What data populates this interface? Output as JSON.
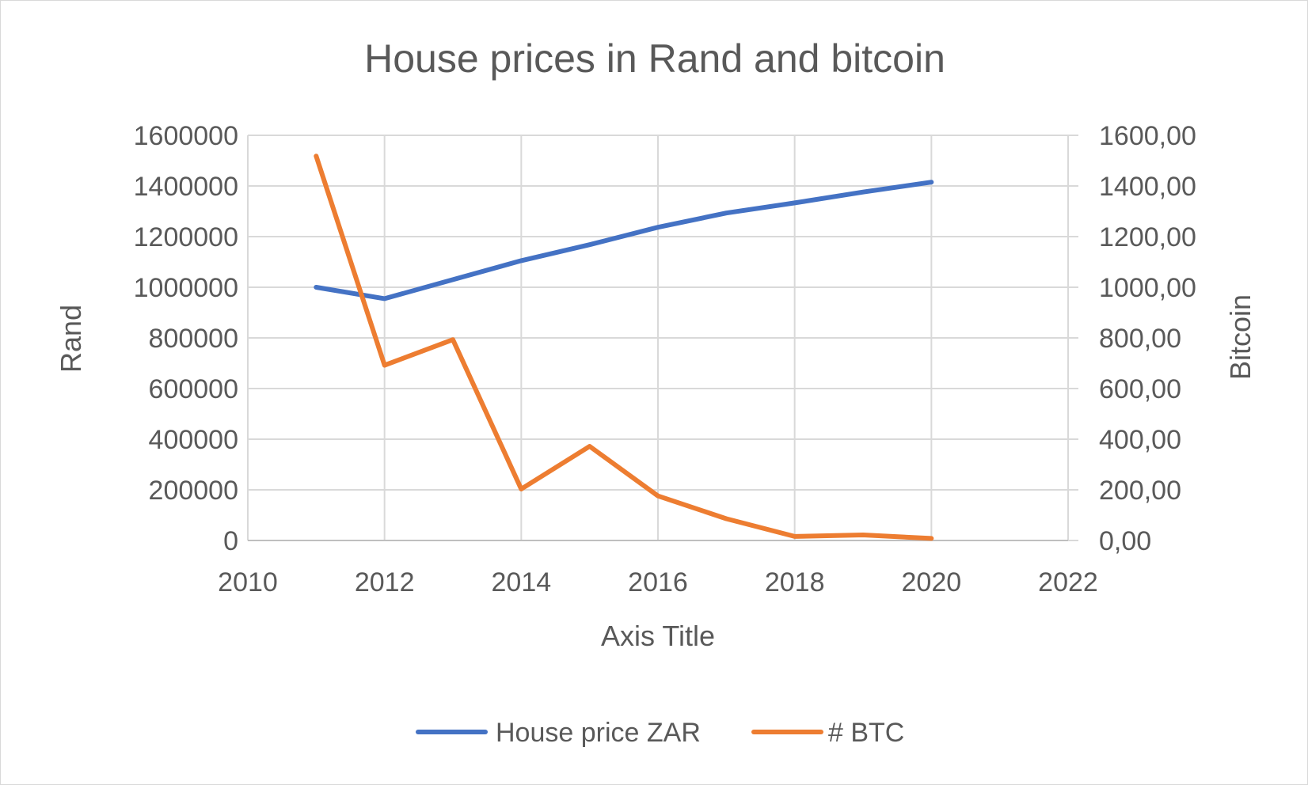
{
  "chart_data": {
    "type": "line",
    "title": "House prices in Rand and bitcoin",
    "xlabel": "Axis Title",
    "ylabel": "Rand",
    "y2label": "Bitcoin",
    "xlim": [
      2010,
      2022
    ],
    "ylim": [
      0,
      1600000
    ],
    "y2lim": [
      0,
      1600
    ],
    "x_ticks": [
      "2010",
      "2012",
      "2014",
      "2016",
      "2018",
      "2020",
      "2022"
    ],
    "y_ticks": [
      "0",
      "200000",
      "400000",
      "600000",
      "800000",
      "1000000",
      "1200000",
      "1400000",
      "1600000"
    ],
    "y2_ticks": [
      "0,00",
      "200,00",
      "400,00",
      "600,00",
      "800,00",
      "1000,00",
      "1200,00",
      "1400,00",
      "1600,00"
    ],
    "grid": true,
    "legend_position": "bottom",
    "series": [
      {
        "name": "House price ZAR",
        "axis": "left",
        "color": "#4472c4",
        "x": [
          2011,
          2012,
          2013,
          2014,
          2015,
          2016,
          2017,
          2018,
          2019,
          2020
        ],
        "y": [
          1000000,
          955000,
          1030000,
          1105000,
          1168000,
          1237000,
          1293000,
          1333000,
          1376000,
          1415000
        ]
      },
      {
        "name": "# BTC",
        "axis": "right",
        "color": "#ed7d31",
        "x": [
          2011,
          2012,
          2013,
          2014,
          2015,
          2016,
          2017,
          2018,
          2019,
          2020
        ],
        "y": [
          1518,
          692,
          793,
          203,
          372,
          176,
          86,
          16,
          22,
          8
        ]
      }
    ]
  }
}
